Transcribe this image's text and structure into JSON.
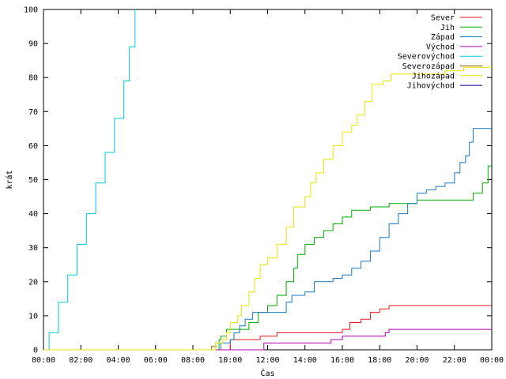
{
  "chart_data": {
    "type": "line",
    "xlabel": "Čas",
    "ylabel": "krát",
    "xlim": [
      0,
      24
    ],
    "ylim": [
      0,
      100
    ],
    "grid": false,
    "legend_position": "top-right",
    "x_ticks": [
      {
        "v": 0,
        "label": "00:00"
      },
      {
        "v": 2,
        "label": "02:00"
      },
      {
        "v": 4,
        "label": "04:00"
      },
      {
        "v": 6,
        "label": "06:00"
      },
      {
        "v": 8,
        "label": "08:00"
      },
      {
        "v": 10,
        "label": "10:00"
      },
      {
        "v": 12,
        "label": "12:00"
      },
      {
        "v": 14,
        "label": "14:00"
      },
      {
        "v": 16,
        "label": "16:00"
      },
      {
        "v": 18,
        "label": "18:00"
      },
      {
        "v": 20,
        "label": "20:00"
      },
      {
        "v": 22,
        "label": "22:00"
      },
      {
        "v": 24,
        "label": "00:00"
      }
    ],
    "y_ticks": [
      {
        "v": 0,
        "label": "0"
      },
      {
        "v": 10,
        "label": "10"
      },
      {
        "v": 20,
        "label": "20"
      },
      {
        "v": 30,
        "label": "30"
      },
      {
        "v": 40,
        "label": "40"
      },
      {
        "v": 50,
        "label": "50"
      },
      {
        "v": 60,
        "label": "60"
      },
      {
        "v": 70,
        "label": "70"
      },
      {
        "v": 80,
        "label": "80"
      },
      {
        "v": 90,
        "label": "90"
      },
      {
        "v": 100,
        "label": "100"
      }
    ],
    "series": [
      {
        "name": "Sever",
        "color": "#e41a1c",
        "points": [
          [
            0,
            0
          ],
          [
            10.0,
            0
          ],
          [
            10.0,
            3
          ],
          [
            11.5,
            3
          ],
          [
            11.6,
            4
          ],
          [
            12.5,
            5
          ],
          [
            15.5,
            5
          ],
          [
            16.0,
            6
          ],
          [
            16.4,
            8
          ],
          [
            17.0,
            9
          ],
          [
            17.5,
            11
          ],
          [
            18.0,
            12
          ],
          [
            18.5,
            13
          ],
          [
            24,
            13
          ]
        ]
      },
      {
        "name": "Jih",
        "color": "#00aa00",
        "points": [
          [
            0,
            0
          ],
          [
            9.0,
            0
          ],
          [
            9.4,
            3
          ],
          [
            9.5,
            4
          ],
          [
            9.8,
            6
          ],
          [
            10.5,
            6
          ],
          [
            11.0,
            8
          ],
          [
            11.5,
            11
          ],
          [
            12.0,
            13
          ],
          [
            12.5,
            16
          ],
          [
            13.0,
            20
          ],
          [
            13.4,
            24
          ],
          [
            13.6,
            28
          ],
          [
            14.0,
            31
          ],
          [
            14.5,
            33
          ],
          [
            15.0,
            35
          ],
          [
            15.5,
            37
          ],
          [
            16.0,
            39
          ],
          [
            16.5,
            41
          ],
          [
            17.5,
            42
          ],
          [
            18.5,
            43
          ],
          [
            19.0,
            43
          ],
          [
            20.0,
            44
          ],
          [
            22.5,
            44
          ],
          [
            23.0,
            46
          ],
          [
            23.5,
            49
          ],
          [
            23.8,
            54
          ],
          [
            24,
            54
          ]
        ]
      },
      {
        "name": "Západ",
        "color": "#1a78c2",
        "points": [
          [
            0,
            0
          ],
          [
            9.2,
            0
          ],
          [
            9.5,
            2
          ],
          [
            10.0,
            3
          ],
          [
            10.2,
            5
          ],
          [
            10.5,
            7
          ],
          [
            10.8,
            9
          ],
          [
            11.2,
            11
          ],
          [
            12.5,
            11
          ],
          [
            13.0,
            14
          ],
          [
            13.3,
            16
          ],
          [
            14.0,
            17
          ],
          [
            14.5,
            20
          ],
          [
            15.5,
            21
          ],
          [
            16.0,
            22
          ],
          [
            16.5,
            24
          ],
          [
            17.0,
            26
          ],
          [
            17.5,
            29
          ],
          [
            18.0,
            33
          ],
          [
            18.5,
            37
          ],
          [
            19.0,
            40
          ],
          [
            19.5,
            43
          ],
          [
            20.0,
            46
          ],
          [
            20.5,
            47
          ],
          [
            21.0,
            48
          ],
          [
            21.5,
            49
          ],
          [
            22.0,
            52
          ],
          [
            22.3,
            55
          ],
          [
            22.6,
            57
          ],
          [
            22.8,
            61
          ],
          [
            23.0,
            65
          ],
          [
            24,
            65
          ]
        ]
      },
      {
        "name": "Východ",
        "color": "#b000b0",
        "points": [
          [
            0,
            0
          ],
          [
            11.8,
            0
          ],
          [
            11.8,
            2
          ],
          [
            15.0,
            2
          ],
          [
            15.4,
            3
          ],
          [
            16.0,
            4
          ],
          [
            17.5,
            4
          ],
          [
            18.3,
            5
          ],
          [
            18.5,
            6
          ],
          [
            24,
            6
          ]
        ]
      },
      {
        "name": "Severovýchod",
        "color": "#00c8d8",
        "points": [
          [
            0,
            0
          ],
          [
            0.3,
            5
          ],
          [
            0.8,
            14
          ],
          [
            1.3,
            22
          ],
          [
            1.8,
            31
          ],
          [
            2.3,
            40
          ],
          [
            2.8,
            49
          ],
          [
            3.3,
            58
          ],
          [
            3.8,
            68
          ],
          [
            4.3,
            79
          ],
          [
            4.6,
            89
          ],
          [
            4.9,
            100
          ]
        ]
      },
      {
        "name": "Severozápad",
        "color": "#8b6a00",
        "points": [
          [
            0,
            0
          ],
          [
            8.8,
            0
          ],
          [
            9.0,
            1
          ],
          [
            9.3,
            1
          ]
        ]
      },
      {
        "name": "Jihozápad",
        "color": "#e6e600",
        "points": [
          [
            0,
            0
          ],
          [
            9.0,
            0
          ],
          [
            9.2,
            2
          ],
          [
            9.6,
            3
          ],
          [
            9.8,
            5
          ],
          [
            10.0,
            8
          ],
          [
            10.4,
            10
          ],
          [
            10.6,
            13
          ],
          [
            11.0,
            17
          ],
          [
            11.3,
            21
          ],
          [
            11.6,
            25
          ],
          [
            12.0,
            27
          ],
          [
            12.5,
            31
          ],
          [
            13.0,
            36
          ],
          [
            13.4,
            42
          ],
          [
            14.0,
            45
          ],
          [
            14.3,
            49
          ],
          [
            14.6,
            52
          ],
          [
            15.0,
            56
          ],
          [
            15.5,
            60
          ],
          [
            16.0,
            64
          ],
          [
            16.5,
            66
          ],
          [
            16.8,
            69
          ],
          [
            17.2,
            73
          ],
          [
            17.6,
            78
          ],
          [
            18.2,
            79
          ],
          [
            18.6,
            81
          ],
          [
            19.5,
            81
          ],
          [
            20.5,
            81
          ],
          [
            21.5,
            82
          ],
          [
            22.0,
            82
          ],
          [
            22.5,
            83
          ],
          [
            24,
            83
          ]
        ]
      },
      {
        "name": "Jihovýchod",
        "color": "#00008b",
        "points": []
      }
    ]
  }
}
